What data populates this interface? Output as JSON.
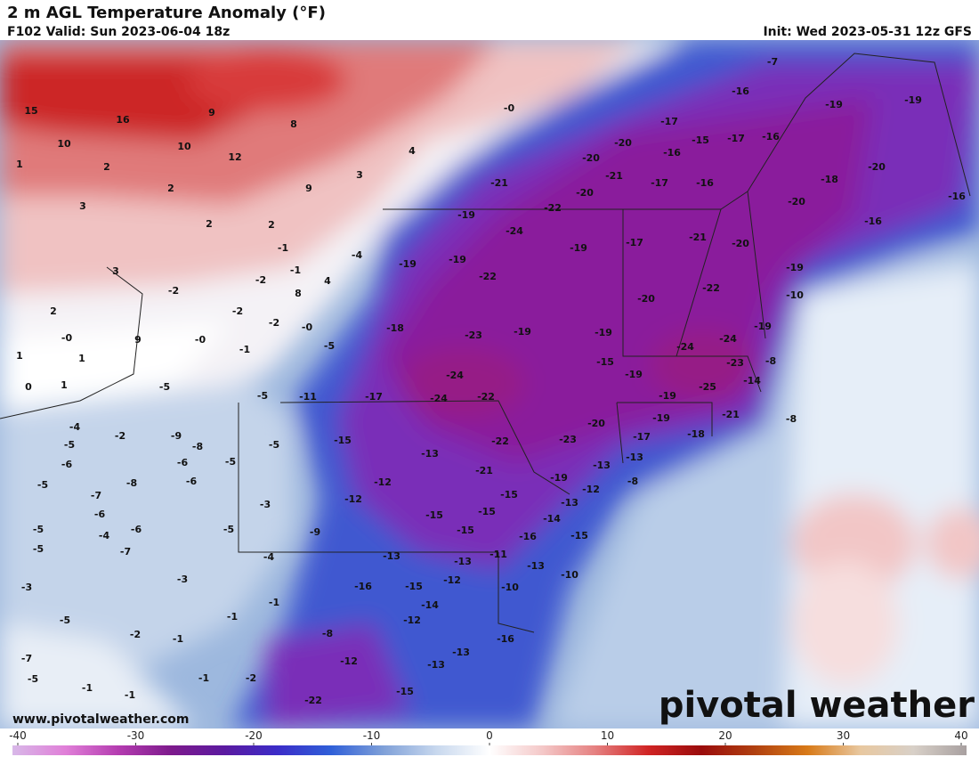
{
  "header": {
    "title": "2 m AGL Temperature Anomaly (°F)",
    "valid": "F102 Valid: Sun 2023-06-04 18z",
    "init": "Init: Wed 2023-05-31 12z GFS"
  },
  "map_labels": [
    15,
    16,
    9,
    8,
    {
      "value": 0,
      "label": "-0"
    },
    10,
    10,
    12,
    4,
    1,
    2,
    2,
    9,
    3,
    3,
    2,
    2,
    -1,
    -4,
    3,
    -1,
    4,
    -2,
    -2,
    8,
    2,
    -2,
    -2,
    {
      "value": 0,
      "label": "-0"
    },
    9,
    {
      "value": 0,
      "label": "-0"
    },
    {
      "value": 0,
      "label": "-0"
    },
    -5,
    -1,
    1,
    1,
    0,
    1,
    -5,
    -5,
    -11,
    -17,
    -4,
    -2,
    -9,
    -5,
    -8,
    -5,
    -15,
    -6,
    -6,
    -5,
    -13,
    -5,
    -8,
    -6,
    -12,
    -7,
    -6,
    -12,
    -3,
    -5,
    -4,
    -6,
    -5,
    -9,
    -5,
    -7,
    -4,
    -3,
    -3,
    -5,
    -1,
    -1,
    -2,
    -1,
    -8,
    -7,
    -5,
    -1,
    -1,
    -1,
    -2,
    -12,
    -22,
    -15,
    -7,
    -16,
    -19,
    -19,
    -17,
    -20,
    -15,
    -17,
    -16,
    -20,
    -16,
    -21,
    -17,
    -16,
    -20,
    -18,
    -21,
    -20,
    -16,
    -20,
    -19,
    -22,
    -24,
    -16,
    -19,
    -17,
    -21,
    -20,
    -19,
    -19,
    -22,
    -19,
    -22,
    -10,
    -20,
    -18,
    -23,
    -19,
    -19,
    -19,
    -24,
    -24,
    -15,
    -23,
    -8,
    -19,
    -24,
    -14,
    -25,
    -19,
    -24,
    -22,
    -20,
    -19,
    -21,
    -8,
    -17,
    -18,
    -23,
    -22,
    -21,
    -13,
    -13,
    -8,
    -19,
    -12,
    -15,
    -13,
    -15,
    -15,
    -14,
    -15,
    -16,
    -15,
    -11,
    -13,
    -13,
    -13,
    -10,
    -16,
    -15,
    -12,
    -10,
    -14,
    -12,
    -16,
    -13,
    -13
  ],
  "footer": {
    "website": "www.pivotalweather.com",
    "logo": "pivotal weather"
  },
  "colorbar": {
    "range": [
      -40,
      40
    ],
    "ticks": [
      -40,
      -30,
      -20,
      -10,
      0,
      10,
      20,
      30,
      40
    ],
    "colors": [
      "#d8b8e8",
      "#e07fd8",
      "#b43cb0",
      "#7d1a8c",
      "#5b1aa0",
      "#3b2cc8",
      "#2f5fd8",
      "#7fa0d8",
      "#c8d8ee",
      "#ffffff",
      "#f4c8c8",
      "#e58080",
      "#d02424",
      "#9a0c0c",
      "#b04010",
      "#d87a18",
      "#e8c8a0",
      "#d8d0c8",
      "#a8a0a0"
    ]
  }
}
